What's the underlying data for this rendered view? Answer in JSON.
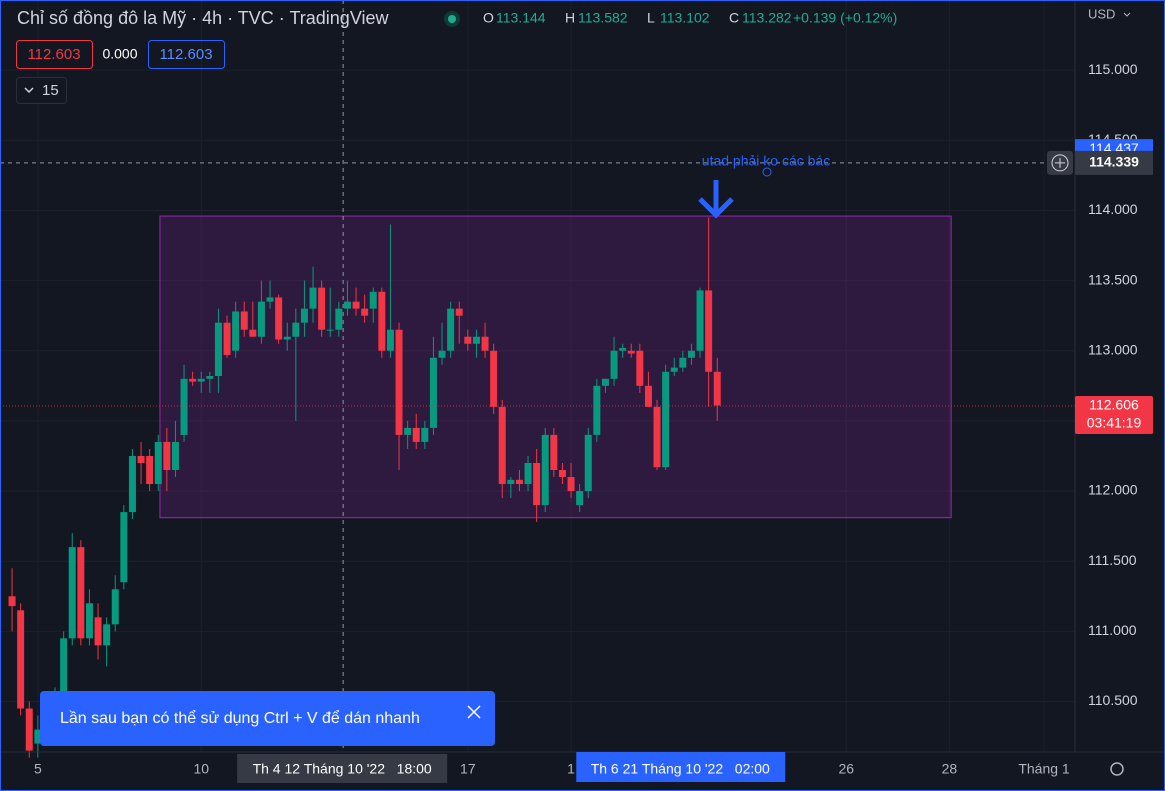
{
  "header": {
    "title": "Chỉ số đồng đô la Mỹ · 4h · TVC · TradingView",
    "ohlc": [
      {
        "key": "O",
        "value": "113.144"
      },
      {
        "key": "H",
        "value": "113.582"
      },
      {
        "key": "L",
        "value": "113.102"
      },
      {
        "key": "C",
        "value": "113.282"
      }
    ],
    "change": "+0.139 (+0.12%)",
    "currency": "USD"
  },
  "indicator": {
    "left": "112.603",
    "middle": "0.000",
    "right": "112.603",
    "count": "15"
  },
  "toast": "Lần sau bạn có thể sử dụng Ctrl + V để dán nhanh",
  "chart_data": {
    "type": "candlestick",
    "open": [
      111.25,
      111.15,
      110.45,
      110.2,
      110.3,
      110.4,
      110.5,
      110.95,
      111.6,
      110.95,
      111.1,
      110.9,
      111.05,
      111.35,
      111.85,
      112.25,
      112.25,
      112.05,
      112.35,
      112.15,
      112.4,
      112.8,
      112.78,
      112.8,
      112.82,
      113.2,
      113.0,
      113.28,
      113.15,
      113.1,
      113.35,
      113.38,
      113.08,
      113.1,
      113.2,
      113.3,
      113.45,
      113.15,
      113.15,
      113.3,
      113.35,
      113.3,
      113.3,
      113.42,
      113.0,
      113.15,
      112.4,
      112.45,
      112.35,
      112.45,
      112.95,
      113.0,
      113.3,
      113.1,
      113.05,
      113.1,
      113.0,
      112.6,
      112.05,
      112.08,
      112.05,
      112.2,
      111.9,
      112.4,
      112.15,
      112.1,
      111.9,
      112.0,
      112.4,
      112.75,
      112.8,
      113.0,
      113.0,
      113.0,
      112.75,
      112.6,
      112.17,
      112.85,
      112.88,
      112.95,
      113.0,
      113.43,
      112.85
    ],
    "high": [
      111.45,
      111.2,
      110.5,
      110.4,
      110.5,
      110.6,
      111.0,
      111.7,
      111.65,
      111.3,
      111.2,
      111.1,
      111.4,
      111.9,
      112.3,
      112.35,
      112.3,
      112.4,
      112.45,
      112.5,
      112.9,
      112.85,
      112.85,
      112.85,
      113.3,
      113.25,
      113.35,
      113.35,
      113.35,
      113.5,
      113.5,
      113.4,
      113.2,
      113.3,
      113.5,
      113.6,
      113.5,
      113.45,
      113.35,
      113.5,
      113.45,
      113.4,
      113.45,
      113.45,
      113.9,
      113.2,
      112.5,
      112.55,
      112.5,
      113.1,
      113.2,
      113.35,
      113.35,
      113.15,
      113.15,
      113.2,
      113.05,
      112.65,
      112.1,
      112.15,
      112.25,
      112.3,
      112.45,
      112.45,
      112.2,
      112.2,
      112.05,
      112.45,
      112.8,
      112.8,
      113.1,
      113.05,
      113.05,
      113.05,
      112.85,
      112.65,
      112.9,
      112.95,
      113.0,
      113.05,
      113.45,
      113.95,
      112.95
    ],
    "low": [
      111.0,
      110.4,
      110.1,
      110.1,
      110.2,
      110.3,
      110.4,
      110.9,
      110.9,
      110.9,
      110.8,
      110.75,
      111.0,
      111.3,
      111.8,
      112.05,
      112.0,
      112.0,
      112.0,
      112.1,
      112.35,
      112.75,
      112.7,
      112.7,
      112.7,
      112.95,
      112.95,
      113.1,
      113.1,
      113.05,
      113.3,
      113.05,
      113.0,
      112.5,
      113.1,
      113.2,
      113.1,
      113.1,
      113.1,
      113.25,
      113.25,
      113.2,
      113.2,
      112.95,
      112.95,
      112.15,
      112.3,
      112.3,
      112.3,
      112.4,
      112.9,
      112.95,
      113.05,
      113.0,
      112.95,
      112.95,
      112.55,
      111.95,
      111.95,
      112.0,
      112.0,
      111.78,
      111.85,
      112.1,
      112.05,
      111.95,
      111.85,
      111.95,
      112.35,
      112.7,
      112.75,
      112.95,
      112.95,
      112.7,
      112.6,
      112.15,
      112.15,
      112.82,
      112.85,
      112.9,
      112.95,
      112.6,
      112.5
    ],
    "close": [
      111.18,
      110.45,
      110.15,
      110.3,
      110.4,
      110.5,
      110.95,
      111.6,
      110.95,
      111.2,
      110.9,
      111.05,
      111.3,
      111.85,
      112.25,
      112.2,
      112.05,
      112.35,
      112.15,
      112.35,
      112.8,
      112.78,
      112.8,
      112.82,
      113.2,
      112.97,
      113.28,
      113.15,
      113.1,
      113.35,
      113.38,
      113.08,
      113.1,
      113.2,
      113.3,
      113.45,
      113.15,
      113.15,
      113.3,
      113.35,
      113.3,
      113.25,
      113.42,
      113.0,
      113.15,
      112.4,
      112.45,
      112.35,
      112.45,
      112.95,
      113.0,
      113.3,
      113.25,
      113.05,
      113.1,
      113.0,
      112.6,
      112.05,
      112.08,
      112.05,
      112.2,
      111.9,
      112.4,
      112.15,
      112.1,
      112.0,
      112.0,
      112.4,
      112.75,
      112.8,
      113.0,
      113.02,
      112.98,
      112.75,
      112.6,
      112.17,
      112.85,
      112.88,
      112.95,
      113.0,
      113.43,
      112.85,
      112.61
    ],
    "up_color": "#089981",
    "down_color": "#f23645",
    "ylim": [
      110.14,
      115.5
    ],
    "yticks": [
      {
        "value": 115,
        "label": "115.000"
      },
      {
        "value": 114.5,
        "label": "114.500"
      },
      {
        "value": 114,
        "label": "114.000"
      },
      {
        "value": 113.5,
        "label": "113.500"
      },
      {
        "value": 113,
        "label": "113.000"
      },
      {
        "value": 112.5,
        "label": "112.500"
      },
      {
        "value": 112,
        "label": "112.000"
      },
      {
        "value": 111.5,
        "label": "111.500"
      },
      {
        "value": 111,
        "label": "111.000"
      },
      {
        "value": 110.5,
        "label": "110.500"
      }
    ],
    "xlim": [
      -1.4,
      123.6
    ],
    "xticks": [
      {
        "value": 3,
        "label": "5"
      },
      {
        "value": 22,
        "label": "10"
      },
      {
        "value": 53,
        "label": "17"
      },
      {
        "value": 65,
        "label": "1"
      },
      {
        "value": 97,
        "label": "26"
      },
      {
        "value": 109,
        "label": "28"
      },
      {
        "value": 120,
        "label": "Tháng 1"
      }
    ],
    "rectangle": {
      "top": 113.96,
      "bottom": 111.81,
      "start": 17.2,
      "end": 109.2
    },
    "alert_price": {
      "value": 114.437,
      "label": "114.437"
    },
    "crosshair": {
      "price": 114.339,
      "index": 38.5,
      "time": "Th 4 12 Tháng 10 '22   18:00"
    },
    "highlight": {
      "index": 77.7,
      "time": "Th 6 21 Tháng 10 '22   02:00"
    },
    "last_price": {
      "value": 112.606,
      "label": "112.606",
      "countdown": "03:41:19"
    },
    "annotation": "utad phải ko các bác"
  }
}
